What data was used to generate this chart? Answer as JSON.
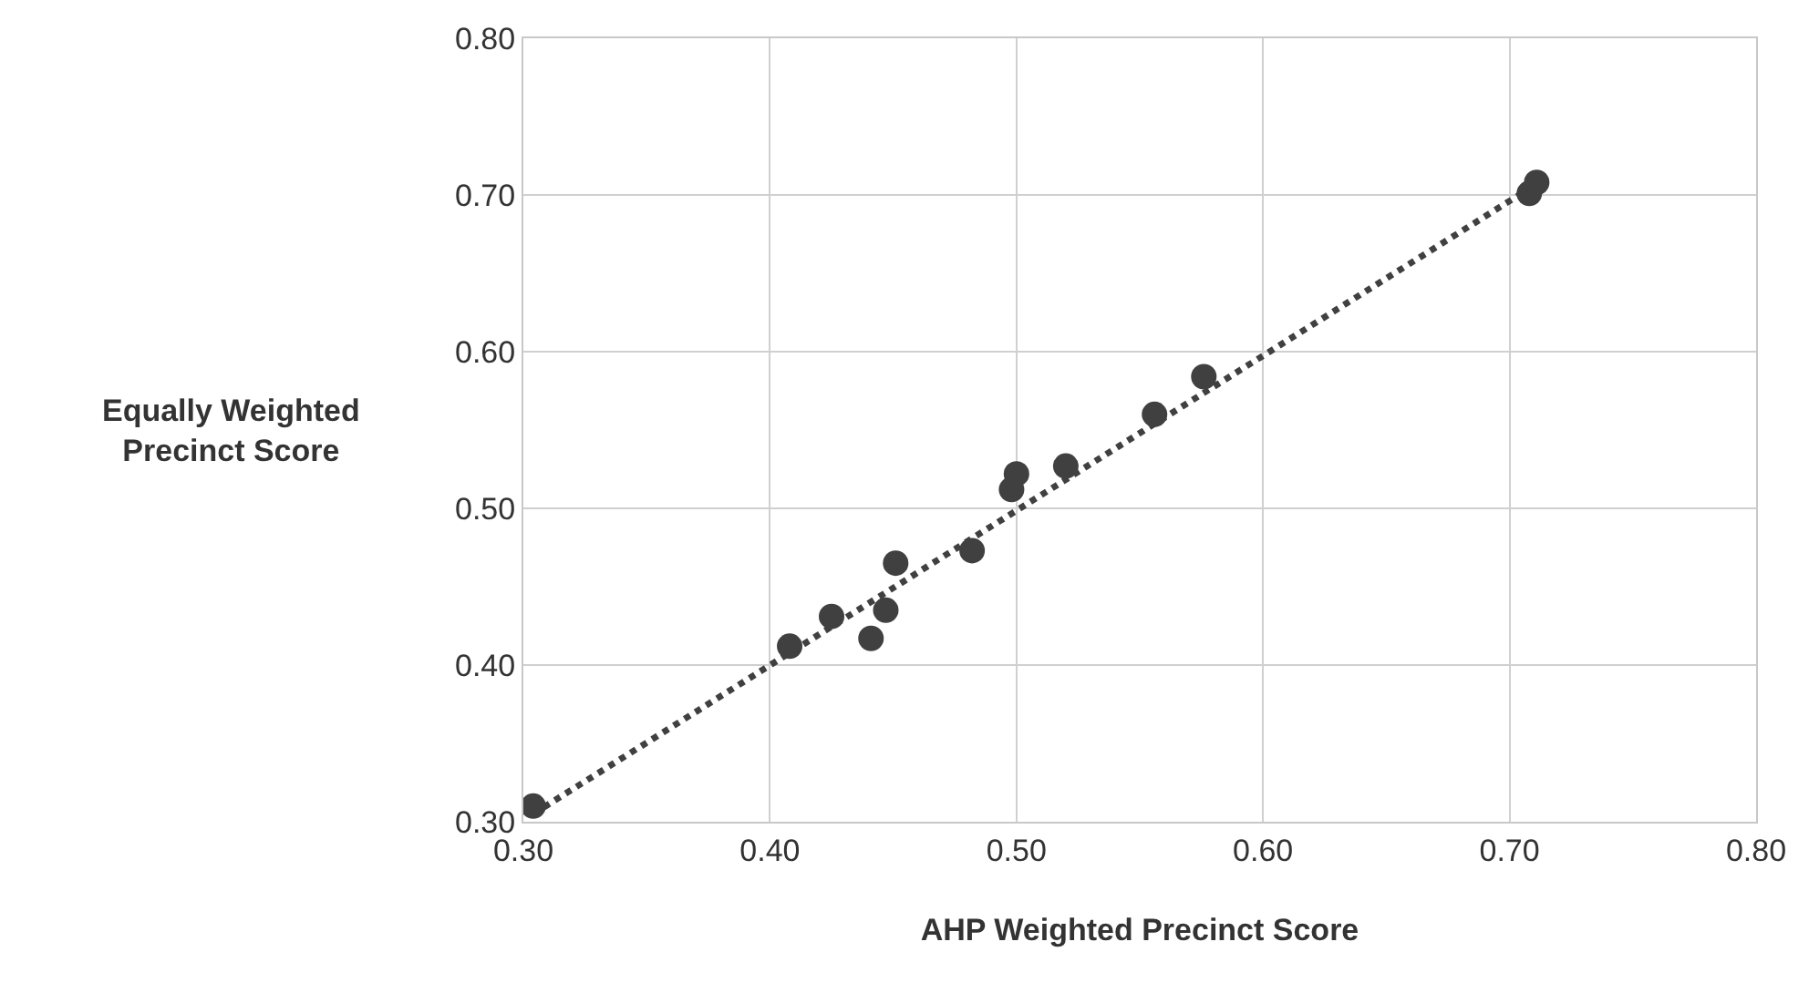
{
  "chart_data": {
    "type": "scatter",
    "xlabel": "AHP Weighted Precinct Score",
    "ylabel": "Equally Weighted\nPrecinct Score",
    "xlim": [
      0.3,
      0.8
    ],
    "xticks": [
      {
        "value": 0.3,
        "label": "0.30"
      },
      {
        "value": 0.4,
        "label": "0.40"
      },
      {
        "value": 0.5,
        "label": "0.50"
      },
      {
        "value": 0.6,
        "label": "0.60"
      },
      {
        "value": 0.7,
        "label": "0.70"
      },
      {
        "value": 0.8,
        "label": "0.80"
      }
    ],
    "ylim": [
      0.3,
      0.8
    ],
    "yticks": [
      {
        "value": 0.3,
        "label": "0.30"
      },
      {
        "value": 0.4,
        "label": "0.40"
      },
      {
        "value": 0.5,
        "label": "0.50"
      },
      {
        "value": 0.6,
        "label": "0.60"
      },
      {
        "value": 0.7,
        "label": "0.70"
      },
      {
        "value": 0.8,
        "label": "0.80"
      }
    ],
    "grid": true,
    "marker": "circle",
    "series": [
      {
        "color": "#404040",
        "x": [
          0.304,
          0.408,
          0.425,
          0.441,
          0.447,
          0.451,
          0.482,
          0.498,
          0.5,
          0.52,
          0.556,
          0.576,
          0.708,
          0.711
        ],
        "values": [
          0.31,
          0.412,
          0.431,
          0.417,
          0.435,
          0.465,
          0.473,
          0.512,
          0.522,
          0.527,
          0.56,
          0.584,
          0.701,
          0.708
        ]
      },
      {
        "type": "line",
        "color": "#404040",
        "line_style": "dotted",
        "marker": "none",
        "x": [
          0.304,
          0.711
        ],
        "values": [
          0.305,
          0.707
        ]
      }
    ]
  }
}
